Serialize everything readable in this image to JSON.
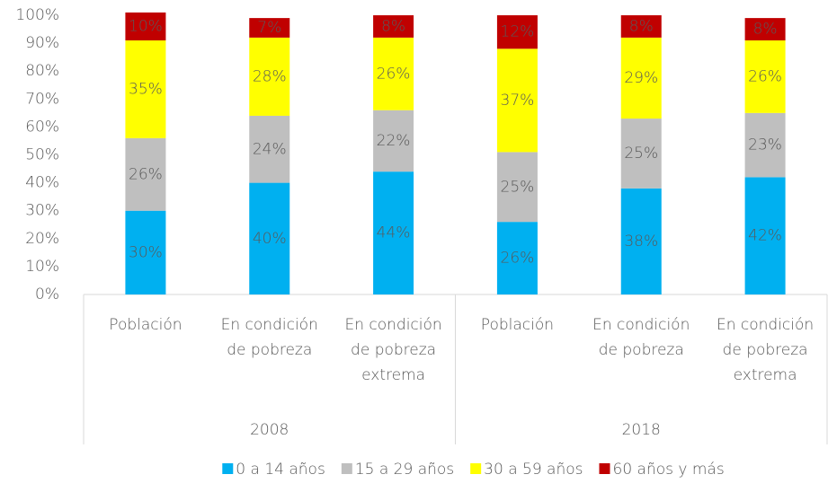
{
  "chart_data": {
    "type": "stacked_bar",
    "categories": [
      [
        "Población"
      ],
      [
        "En condición",
        "de pobreza"
      ],
      [
        "En condición",
        "de pobreza",
        "extrema"
      ],
      [
        "Población"
      ],
      [
        "En condición",
        "de pobreza"
      ],
      [
        "En condición",
        "de pobreza",
        "extrema"
      ]
    ],
    "groups": [
      "2008",
      "2018"
    ],
    "series": [
      {
        "name": "0 a 14 años",
        "color": "#00b0f0",
        "values": [
          30,
          40,
          44,
          26,
          38,
          42
        ],
        "value_labels": [
          "30%",
          "40%",
          "44%",
          "26%",
          "38%",
          "42%"
        ]
      },
      {
        "name": "15 a 29 años",
        "color": "#bfbfbf",
        "values": [
          26,
          24,
          22,
          25,
          25,
          23
        ],
        "value_labels": [
          "26%",
          "24%",
          "22%",
          "25%",
          "25%",
          "23%"
        ]
      },
      {
        "name": "30 a 59 años",
        "color": "#ffff00",
        "values": [
          35,
          28,
          26,
          37,
          29,
          26
        ],
        "value_labels": [
          "35%",
          "28%",
          "26%",
          "37%",
          "29%",
          "26%"
        ]
      },
      {
        "name": "60 años y más",
        "color": "#c00000",
        "values": [
          10,
          7,
          8,
          12,
          8,
          8
        ],
        "value_labels": [
          "10%",
          "7%",
          "8%",
          "12%",
          "8%",
          "8%"
        ]
      }
    ],
    "ylim": [
      0,
      100
    ],
    "yticks": [
      {
        "value": 0,
        "label": "0%"
      },
      {
        "value": 10,
        "label": "10%"
      },
      {
        "value": 20,
        "label": "20%"
      },
      {
        "value": 30,
        "label": "30%"
      },
      {
        "value": 40,
        "label": "40%"
      },
      {
        "value": 50,
        "label": "50%"
      },
      {
        "value": 60,
        "label": "60%"
      },
      {
        "value": 70,
        "label": "70%"
      },
      {
        "value": 80,
        "label": "80%"
      },
      {
        "value": 90,
        "label": "90%"
      },
      {
        "value": 100,
        "label": "100%"
      }
    ],
    "grid": false,
    "legend": "bottom"
  }
}
